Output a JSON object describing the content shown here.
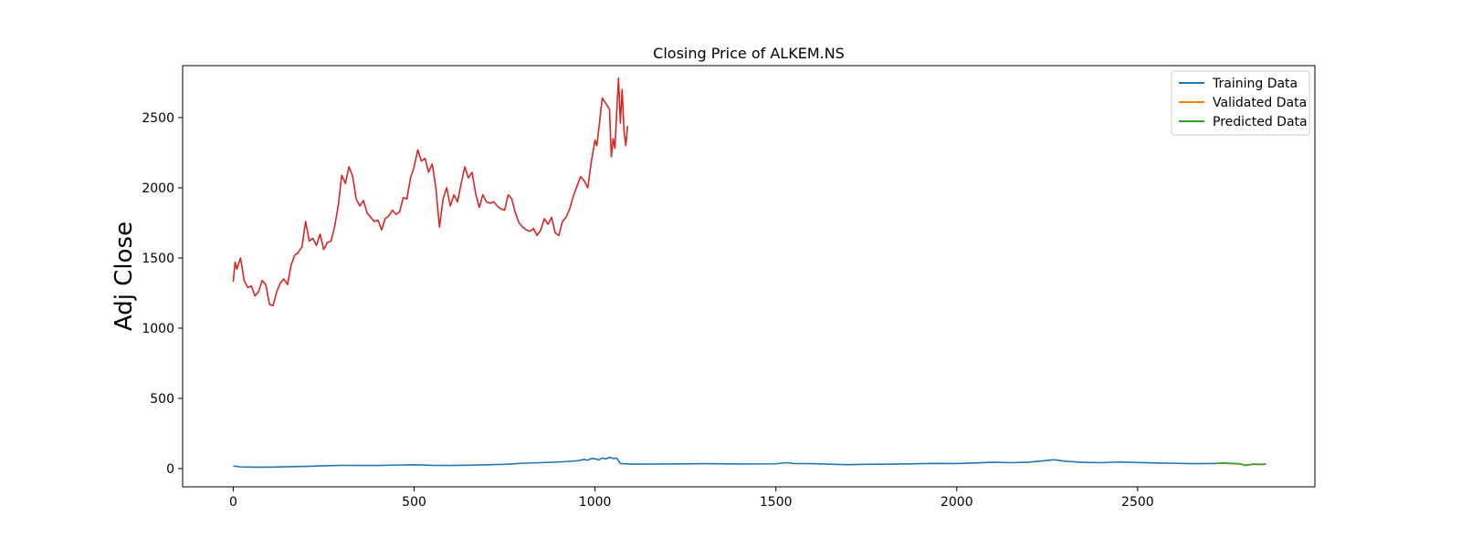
{
  "chart_data": {
    "type": "line",
    "title": "Closing Price of ALKEM.NS",
    "xlabel": "",
    "ylabel": "Adj Close",
    "xlim": [
      -140,
      2990
    ],
    "ylim": [
      -130,
      2870
    ],
    "xticks": [
      0,
      500,
      1000,
      1500,
      2000,
      2500
    ],
    "yticks": [
      0,
      500,
      1000,
      1500,
      2000,
      2500
    ],
    "grid": false,
    "legend_position": "top-right",
    "legend": [
      {
        "name": "Training Data",
        "color": "#1f77b4"
      },
      {
        "name": "Validated Data",
        "color": "#ff7f0e"
      },
      {
        "name": "Predicted Data",
        "color": "#2ca02c"
      }
    ],
    "series": [
      {
        "name": "Training Data",
        "color": "#1f77b4",
        "x": [
          0,
          20,
          60,
          100,
          150,
          200,
          250,
          300,
          350,
          400,
          450,
          500,
          550,
          600,
          650,
          700,
          750,
          800,
          850,
          900,
          950,
          970,
          980,
          990,
          1000,
          1010,
          1020,
          1030,
          1040,
          1050,
          1060,
          1070,
          1100,
          1200,
          1300,
          1400,
          1500,
          1530,
          1550,
          1600,
          1650,
          1700,
          1750,
          1800,
          1850,
          1900,
          1950,
          2000,
          2050,
          2100,
          2150,
          2200,
          2250,
          2270,
          2300,
          2350,
          2400,
          2450,
          2500,
          2550,
          2600,
          2650,
          2700,
          2720
        ],
        "y": [
          18,
          12,
          10,
          10,
          13,
          16,
          20,
          23,
          22,
          22,
          25,
          27,
          23,
          22,
          24,
          27,
          30,
          38,
          42,
          47,
          55,
          65,
          60,
          72,
          70,
          62,
          75,
          68,
          80,
          72,
          74,
          36,
          32,
          33,
          35,
          33,
          34,
          42,
          36,
          35,
          31,
          28,
          30,
          31,
          33,
          35,
          37,
          36,
          40,
          45,
          42,
          46,
          58,
          63,
          52,
          44,
          42,
          47,
          43,
          40,
          38,
          35,
          36,
          37
        ]
      },
      {
        "name": "Validated Data",
        "color": "#ff7f0e",
        "x": [
          2720,
          2740,
          2760,
          2780,
          2800,
          2820,
          2840,
          2855
        ],
        "y": [
          37,
          38,
          35,
          33,
          25,
          30,
          28,
          32
        ]
      },
      {
        "name": "Predicted Data",
        "color": "#2ca02c",
        "x": [
          2720,
          2740,
          2760,
          2780,
          2800,
          2810,
          2820,
          2840,
          2855
        ],
        "y": [
          38,
          40,
          37,
          35,
          22,
          28,
          32,
          30,
          33
        ]
      },
      {
        "name": "",
        "color": "#d62728",
        "x": [
          0,
          5,
          10,
          20,
          30,
          40,
          50,
          60,
          70,
          80,
          90,
          100,
          110,
          120,
          130,
          140,
          150,
          160,
          170,
          180,
          190,
          200,
          210,
          220,
          230,
          240,
          250,
          260,
          270,
          280,
          290,
          300,
          310,
          320,
          330,
          340,
          350,
          360,
          370,
          380,
          390,
          400,
          410,
          420,
          430,
          440,
          450,
          460,
          470,
          480,
          490,
          500,
          510,
          520,
          530,
          540,
          550,
          560,
          570,
          580,
          590,
          600,
          610,
          620,
          630,
          640,
          650,
          660,
          670,
          680,
          690,
          700,
          710,
          720,
          730,
          740,
          750,
          760,
          770,
          780,
          790,
          800,
          810,
          820,
          830,
          840,
          850,
          860,
          870,
          880,
          890,
          900,
          910,
          920,
          930,
          940,
          950,
          960,
          970,
          980,
          990,
          1000,
          1005,
          1010,
          1020,
          1030,
          1040,
          1045,
          1050,
          1055,
          1060,
          1065,
          1070,
          1075,
          1080,
          1085,
          1090
        ],
        "y": [
          1330,
          1470,
          1420,
          1500,
          1340,
          1290,
          1300,
          1230,
          1260,
          1340,
          1310,
          1170,
          1160,
          1260,
          1320,
          1350,
          1310,
          1450,
          1520,
          1540,
          1580,
          1760,
          1620,
          1640,
          1590,
          1670,
          1560,
          1610,
          1620,
          1720,
          1870,
          2090,
          2030,
          2150,
          2080,
          1920,
          1870,
          1910,
          1820,
          1790,
          1760,
          1770,
          1700,
          1780,
          1800,
          1840,
          1810,
          1830,
          1930,
          1920,
          2070,
          2150,
          2270,
          2190,
          2210,
          2110,
          2170,
          2000,
          1720,
          1920,
          2000,
          1870,
          1950,
          1900,
          2030,
          2150,
          2070,
          2110,
          1960,
          1860,
          1950,
          1900,
          1890,
          1900,
          1870,
          1850,
          1840,
          1950,
          1920,
          1820,
          1750,
          1720,
          1700,
          1690,
          1710,
          1660,
          1700,
          1780,
          1740,
          1790,
          1680,
          1660,
          1760,
          1790,
          1850,
          1940,
          2010,
          2080,
          2050,
          2000,
          2190,
          2340,
          2300,
          2410,
          2640,
          2600,
          2560,
          2220,
          2350,
          2280,
          2540,
          2780,
          2460,
          2700,
          2410,
          2300,
          2440
        ]
      }
    ]
  }
}
